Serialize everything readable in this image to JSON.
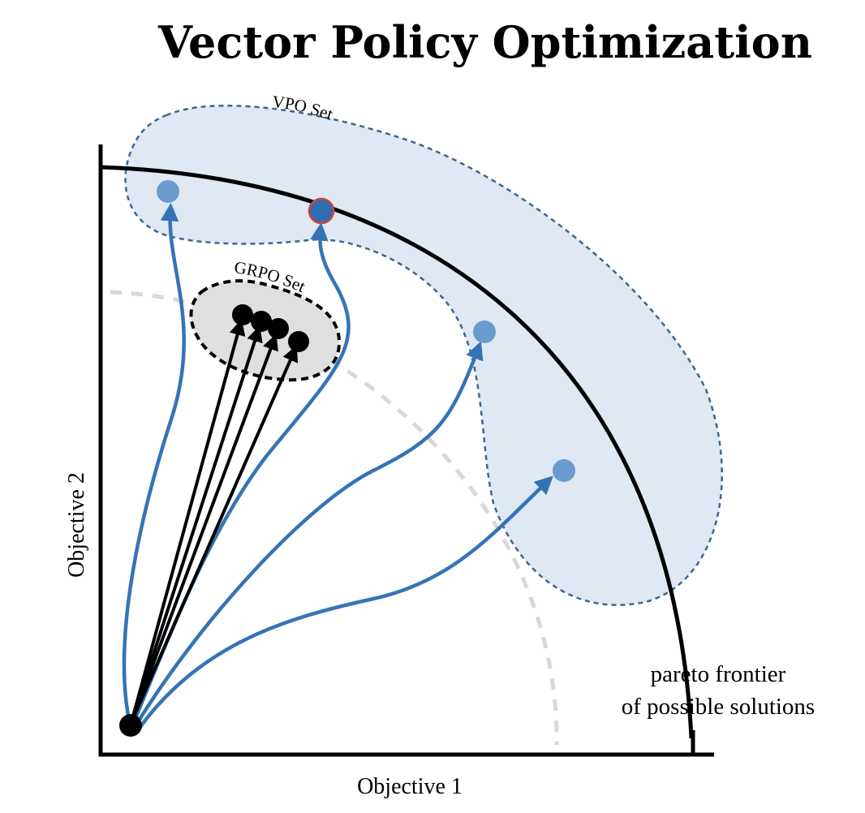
{
  "title": "Vector Policy Optimization",
  "x_axis_label": "Objective 1",
  "y_axis_label": "Objective 2",
  "vpo_set_label": "VPO Set",
  "grpo_set_label": "GRPO Set",
  "frontier_label": {
    "line1": "pareto frontier",
    "line2": "of possible solutions"
  },
  "colors": {
    "vpo_fill": "#dfe8f3",
    "vpo_stroke": "#3f6591",
    "blue_arrow": "#3474b6",
    "light_blue_point": "#6a9bcf",
    "highlight_point_fill": "#2f6db0",
    "highlight_point_stroke": "#d3413c",
    "grpo_fill": "#dfdfdf",
    "black": "#000000",
    "gray_dashed": "#d8d8d8"
  }
}
